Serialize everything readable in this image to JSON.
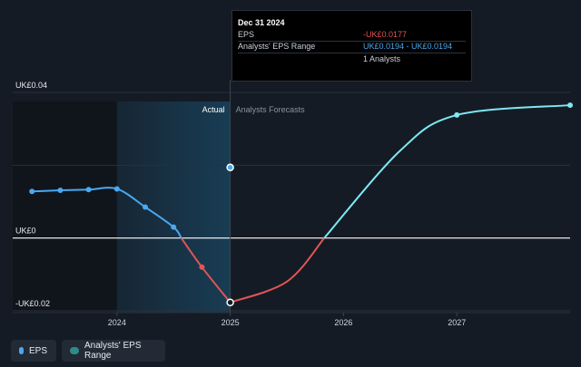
{
  "tooltip": {
    "date": "Dec 31 2024",
    "eps_label": "EPS",
    "eps_value": "-UK£0.0177",
    "range_label": "Analysts' EPS Range",
    "range_value": "UK£0.0194 - UK£0.0194",
    "analysts": "1 Analysts"
  },
  "legend": {
    "eps_label": "EPS",
    "range_label": "Analysts' EPS Range"
  },
  "colors": {
    "background": "#151b24",
    "actual_eps": "#4aa8f0",
    "negative_eps": "#e05555",
    "forecast_eps": "#7ee8f5",
    "highlight": "#1a4864"
  },
  "chart_data": {
    "type": "line",
    "ylabel_ticks": [
      "UK£0.04",
      "UK£0",
      "-UK£0.02"
    ],
    "y_tick_values": [
      0.04,
      0,
      -0.02
    ],
    "x_tick_labels": [
      "2024",
      "2025",
      "2026",
      "2027"
    ],
    "x_tick_values": [
      2024,
      2025,
      2026,
      2027
    ],
    "xlim": [
      2023.08,
      2028
    ],
    "ylim": [
      -0.0205,
      0.0405
    ],
    "section_labels": {
      "actual": "Actual",
      "forecast": "Analysts Forecasts"
    },
    "divider_x": 2025,
    "highlight_range": [
      2024,
      2025
    ],
    "series": [
      {
        "name": "EPS",
        "kind": "actual",
        "points": [
          {
            "x": 2023.25,
            "y": 0.0128
          },
          {
            "x": 2023.5,
            "y": 0.0131
          },
          {
            "x": 2023.75,
            "y": 0.0133
          },
          {
            "x": 2024.0,
            "y": 0.0135
          },
          {
            "x": 2024.25,
            "y": 0.0085
          },
          {
            "x": 2024.5,
            "y": 0.003
          },
          {
            "x": 2024.75,
            "y": -0.008
          },
          {
            "x": 2025.0,
            "y": -0.0177
          }
        ]
      },
      {
        "name": "Analysts' EPS Range",
        "kind": "forecast",
        "points": [
          {
            "x": 2025.0,
            "y": -0.0177
          },
          {
            "x": 2025.5,
            "y": -0.012
          },
          {
            "x": 2025.83,
            "y": 0.0
          },
          {
            "x": 2026.5,
            "y": 0.024
          },
          {
            "x": 2027.0,
            "y": 0.0338
          },
          {
            "x": 2028.0,
            "y": 0.0365
          }
        ]
      }
    ],
    "marker_point": {
      "x": 2025.0,
      "y": 0.0194
    }
  }
}
